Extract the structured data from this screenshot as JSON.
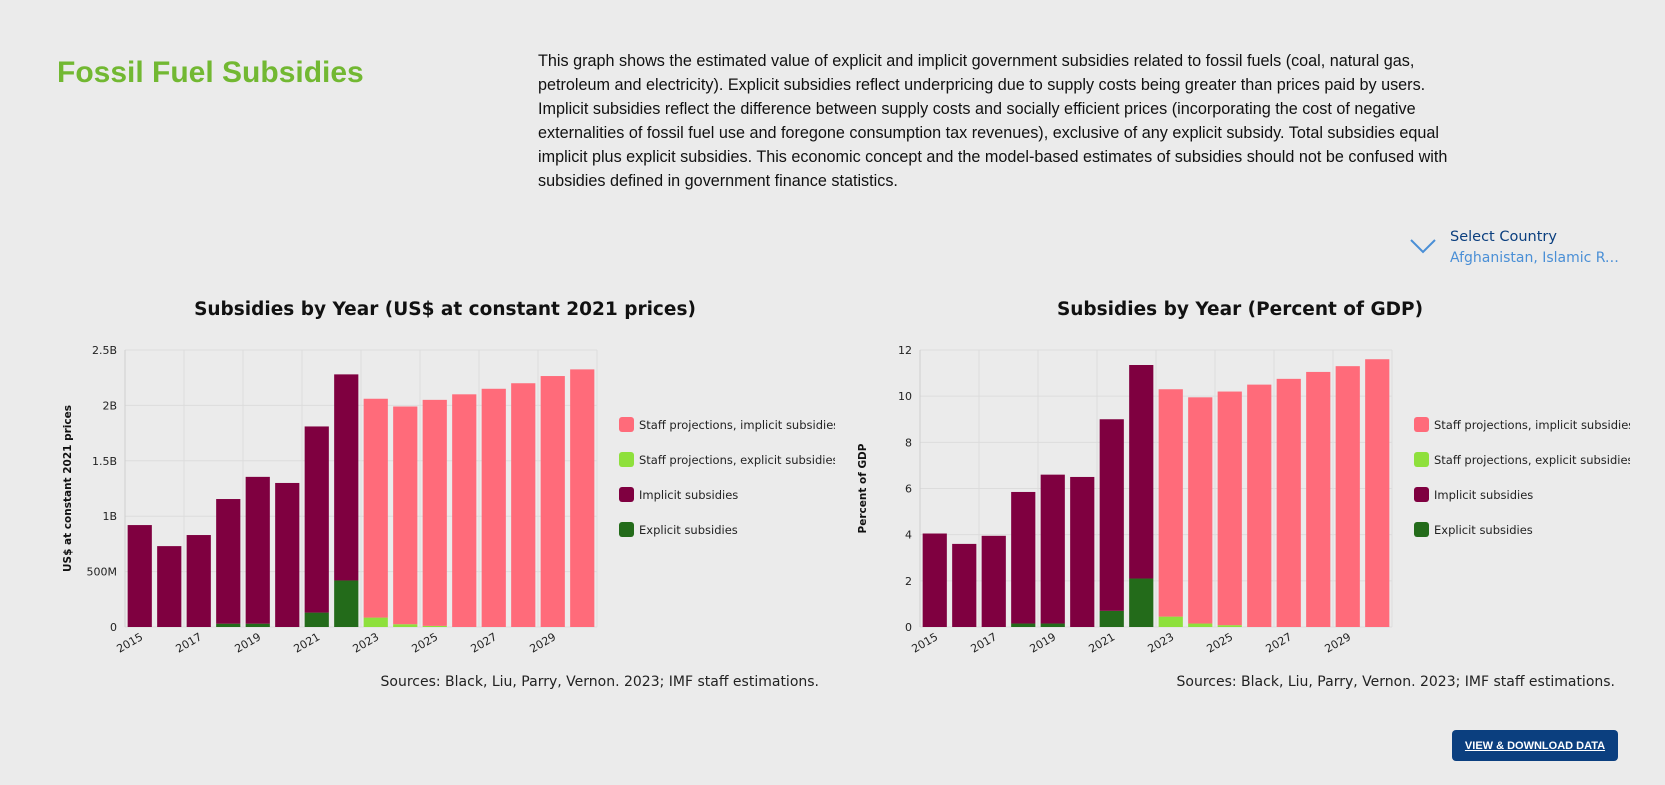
{
  "page": {
    "title": "Fossil Fuel Subsidies",
    "description": "This graph shows the estimated value of explicit and implicit government subsidies related to fossil fuels (coal, natural gas, petroleum and electricity). Explicit subsidies reflect underpricing due to supply costs being greater than prices paid by users. Implicit subsidies reflect the difference between supply costs and socially efficient prices (incorporating the cost of negative externalities of fossil fuel use and foregone consumption tax revenues), exclusive of any explicit subsidy. Total subsidies equal implicit plus explicit subsidies. This economic concept and the model-based estimates of subsidies should not be confused with subsidies defined in government finance statistics."
  },
  "country_select": {
    "label": "Select Country",
    "value": "Afghanistan, Islamic Re…"
  },
  "download_button": {
    "label": "VIEW & DOWNLOAD DATA"
  },
  "colors": {
    "staff_implicit": "#ff6b7a",
    "staff_explicit": "#8ee03c",
    "implicit": "#7f0040",
    "explicit": "#236b1a"
  },
  "chart_data": [
    {
      "type": "bar",
      "stacked": true,
      "title": "Subsidies by Year (US$ at constant 2021 prices)",
      "ylabel": "US$ at constant 2021 prices",
      "xlabel": "",
      "ylim": [
        0,
        2500000000
      ],
      "yticks": [
        0,
        500000000,
        1000000000,
        1500000000,
        2000000000,
        2500000000
      ],
      "ytick_labels": [
        "0",
        "500M",
        "1B",
        "1.5B",
        "2B",
        "2.5B"
      ],
      "categories": [
        "2015",
        "2016",
        "2017",
        "2018",
        "2019",
        "2020",
        "2021",
        "2022",
        "2023",
        "2024",
        "2025",
        "2026",
        "2027",
        "2028",
        "2029",
        "2030"
      ],
      "xtick_labels": [
        "2015",
        "2017",
        "2019",
        "2021",
        "2023",
        "2025",
        "2027",
        "2029"
      ],
      "legend_position": "right",
      "grid": true,
      "source": "Sources: Black, Liu, Parry, Vernon. 2023; IMF staff estimations.",
      "series": [
        {
          "name": "Explicit subsidies",
          "color": "#236b1a",
          "values": [
            0,
            0,
            0,
            30000000,
            30000000,
            0,
            130000000,
            420000000,
            0,
            0,
            0,
            0,
            0,
            0,
            0,
            0
          ]
        },
        {
          "name": "Implicit subsidies",
          "color": "#7f0040",
          "values": [
            920000000,
            730000000,
            830000000,
            1125000000,
            1325000000,
            1300000000,
            1680000000,
            1860000000,
            0,
            0,
            0,
            0,
            0,
            0,
            0,
            0
          ]
        },
        {
          "name": "Staff projections, explicit subsidies",
          "color": "#8ee03c",
          "values": [
            0,
            0,
            0,
            0,
            0,
            0,
            0,
            0,
            85000000,
            25000000,
            10000000,
            0,
            0,
            0,
            0,
            0
          ]
        },
        {
          "name": "Staff projections, implicit subsidies",
          "color": "#ff6b7a",
          "values": [
            0,
            0,
            0,
            0,
            0,
            0,
            0,
            0,
            1975000000,
            1965000000,
            2040000000,
            2100000000,
            2150000000,
            2200000000,
            2265000000,
            2325000000
          ]
        }
      ],
      "legend": [
        "Staff projections, implicit subsidies",
        "Staff projections, explicit subsidies",
        "Implicit subsidies",
        "Explicit subsidies"
      ]
    },
    {
      "type": "bar",
      "stacked": true,
      "title": "Subsidies by Year (Percent of GDP)",
      "ylabel": "Percent of GDP",
      "xlabel": "",
      "ylim": [
        0,
        12
      ],
      "yticks": [
        0,
        2,
        4,
        6,
        8,
        10,
        12
      ],
      "ytick_labels": [
        "0",
        "2",
        "4",
        "6",
        "8",
        "10",
        "12"
      ],
      "categories": [
        "2015",
        "2016",
        "2017",
        "2018",
        "2019",
        "2020",
        "2021",
        "2022",
        "2023",
        "2024",
        "2025",
        "2026",
        "2027",
        "2028",
        "2029",
        "2030"
      ],
      "xtick_labels": [
        "2015",
        "2017",
        "2019",
        "2021",
        "2023",
        "2025",
        "2027",
        "2029"
      ],
      "legend_position": "right",
      "grid": true,
      "source": "Sources: Black, Liu, Parry, Vernon. 2023; IMF staff estimations.",
      "series": [
        {
          "name": "Explicit subsidies",
          "color": "#236b1a",
          "values": [
            0,
            0,
            0,
            0.15,
            0.15,
            0,
            0.7,
            2.1,
            0,
            0,
            0,
            0,
            0,
            0,
            0,
            0
          ]
        },
        {
          "name": "Implicit subsidies",
          "color": "#7f0040",
          "values": [
            4.05,
            3.6,
            3.95,
            5.7,
            6.45,
            6.5,
            8.3,
            9.25,
            0,
            0,
            0,
            0,
            0,
            0,
            0,
            0
          ]
        },
        {
          "name": "Staff projections, explicit subsidies",
          "color": "#8ee03c",
          "values": [
            0,
            0,
            0,
            0,
            0,
            0,
            0,
            0,
            0.45,
            0.15,
            0.08,
            0,
            0,
            0,
            0,
            0
          ]
        },
        {
          "name": "Staff projections, implicit subsidies",
          "color": "#ff6b7a",
          "values": [
            0,
            0,
            0,
            0,
            0,
            0,
            0,
            0,
            9.85,
            9.8,
            10.12,
            10.5,
            10.75,
            11.05,
            11.3,
            11.6
          ]
        }
      ],
      "legend": [
        "Staff projections, implicit subsidies",
        "Staff projections, explicit subsidies",
        "Implicit subsidies",
        "Explicit subsidies"
      ]
    }
  ]
}
